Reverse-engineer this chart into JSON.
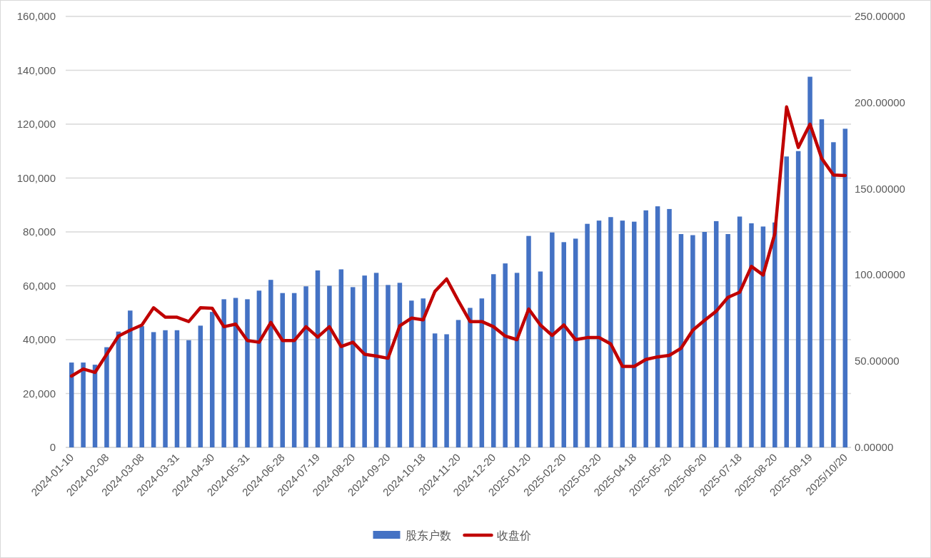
{
  "chart_data": {
    "type": "bar",
    "categories": [
      "2024-01-10",
      null,
      null,
      "2024-02-08",
      null,
      null,
      "2024-03-08",
      null,
      null,
      "2024-03-31",
      null,
      null,
      "2024-04-30",
      null,
      null,
      "2024-05-31",
      null,
      null,
      "2024-06-28",
      null,
      null,
      "2024-07-19",
      null,
      null,
      "2024-08-20",
      null,
      null,
      "2024-09-20",
      null,
      null,
      "2024-10-18",
      null,
      null,
      "2024-11-20",
      null,
      null,
      "2024-12-20",
      null,
      null,
      "2025-01-20",
      null,
      null,
      "2025-02-20",
      null,
      null,
      "2025-03-20",
      null,
      null,
      "2025-04-18",
      null,
      null,
      "2025-05-20",
      null,
      null,
      "2025-06-20",
      null,
      null,
      "2025-07-18",
      null,
      null,
      "2025-08-20",
      null,
      null,
      "2025-09-19",
      null,
      null,
      "2025/10/20"
    ],
    "series": [
      {
        "name": "股东户数",
        "color": "#4472c4",
        "values": [
          31500,
          31500,
          30700,
          37200,
          43000,
          50800,
          45000,
          42800,
          43500,
          43500,
          39800,
          45200,
          50300,
          55000,
          55500,
          55000,
          58200,
          62200,
          57300,
          57300,
          59800,
          65700,
          60000,
          66100,
          59500,
          63800,
          64800,
          60300,
          61100,
          54500,
          55300,
          42300,
          42000,
          47300,
          51800,
          55300,
          64300,
          68300,
          64800,
          78500,
          65300,
          79800,
          76200,
          77500,
          83000,
          84200,
          85500,
          84200,
          83800,
          88000,
          89500,
          88500,
          79200,
          78800,
          80000,
          84000,
          79200,
          85700,
          83200,
          82000,
          83500,
          108000,
          110000,
          137600,
          121800,
          113300,
          118300
        ]
      },
      {
        "name": "收盘价",
        "type": "line",
        "axis": "y2",
        "color": "#c00000",
        "values": [
          41.4,
          45.5,
          43.5,
          54,
          64.6,
          68,
          71,
          81,
          75.5,
          75.5,
          73,
          81,
          80.7,
          70,
          71.5,
          62,
          61,
          72.5,
          62,
          62,
          70,
          64,
          70,
          58.5,
          61,
          54,
          53,
          51.7,
          70.5,
          75,
          74,
          90.5,
          97.7,
          85,
          73,
          73,
          70,
          64.6,
          62.5,
          80.3,
          71,
          65,
          71,
          62.5,
          63.7,
          63.7,
          60,
          47,
          47,
          51,
          52.5,
          53.4,
          57.5,
          68,
          73.7,
          79,
          87,
          90,
          105,
          100,
          124,
          197.5,
          174,
          187.5,
          167.6,
          158,
          157.7
        ]
      }
    ],
    "ylim": [
      0,
      160000
    ],
    "yticks": [
      {
        "value": 0,
        "label": "0"
      },
      {
        "value": 20000,
        "label": "20,000"
      },
      {
        "value": 40000,
        "label": "40,000"
      },
      {
        "value": 60000,
        "label": "60,000"
      },
      {
        "value": 80000,
        "label": "80,000"
      },
      {
        "value": 100000,
        "label": "100,000"
      },
      {
        "value": 120000,
        "label": "120,000"
      },
      {
        "value": 140000,
        "label": "140,000"
      },
      {
        "value": 160000,
        "label": "160,000"
      }
    ],
    "y2lim": [
      0,
      250
    ],
    "y2ticks": [
      {
        "value": 0,
        "label": "0.00000"
      },
      {
        "value": 50,
        "label": "50.00000"
      },
      {
        "value": 100,
        "label": "100.00000"
      },
      {
        "value": 150,
        "label": "150.00000"
      },
      {
        "value": 200,
        "label": "200.00000"
      },
      {
        "value": 250,
        "label": "250.00000"
      }
    ],
    "grid": "y",
    "legend": "bottom"
  }
}
